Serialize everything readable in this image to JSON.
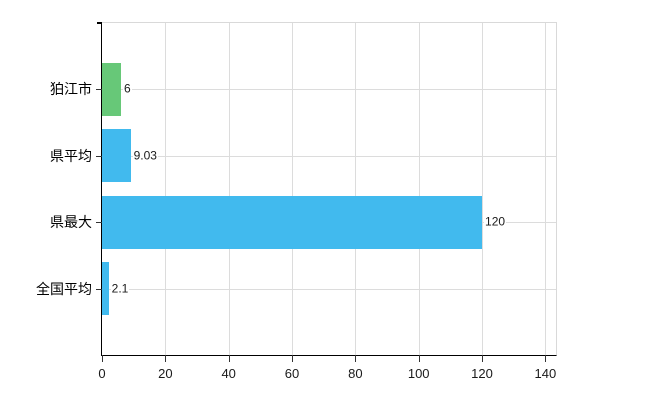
{
  "chart": {
    "title": "",
    "background_color": "#ffffff",
    "grid_color": "#dcdcdc",
    "axis_color": "#000000",
    "border_color": "#d9d9d9",
    "text_color": "#1a1a1a",
    "accent_blue": "#41baee",
    "accent_green": "#67c878"
  },
  "chart_data": {
    "type": "bar",
    "orientation": "horizontal",
    "title": "",
    "xlabel": "",
    "ylabel": "",
    "categories": [
      "狛江市",
      "県平均",
      "県最大",
      "全国平均"
    ],
    "values": [
      6,
      9.03,
      120,
      2.1
    ],
    "value_labels": [
      "6",
      "9.03",
      "120",
      "2.1"
    ],
    "bar_colors": [
      "#67c878",
      "#41baee",
      "#41baee",
      "#41baee"
    ],
    "x_ticks": [
      0,
      20,
      40,
      60,
      80,
      100,
      120,
      140
    ],
    "xlim": [
      0,
      140
    ],
    "grid": true,
    "legend": false
  }
}
